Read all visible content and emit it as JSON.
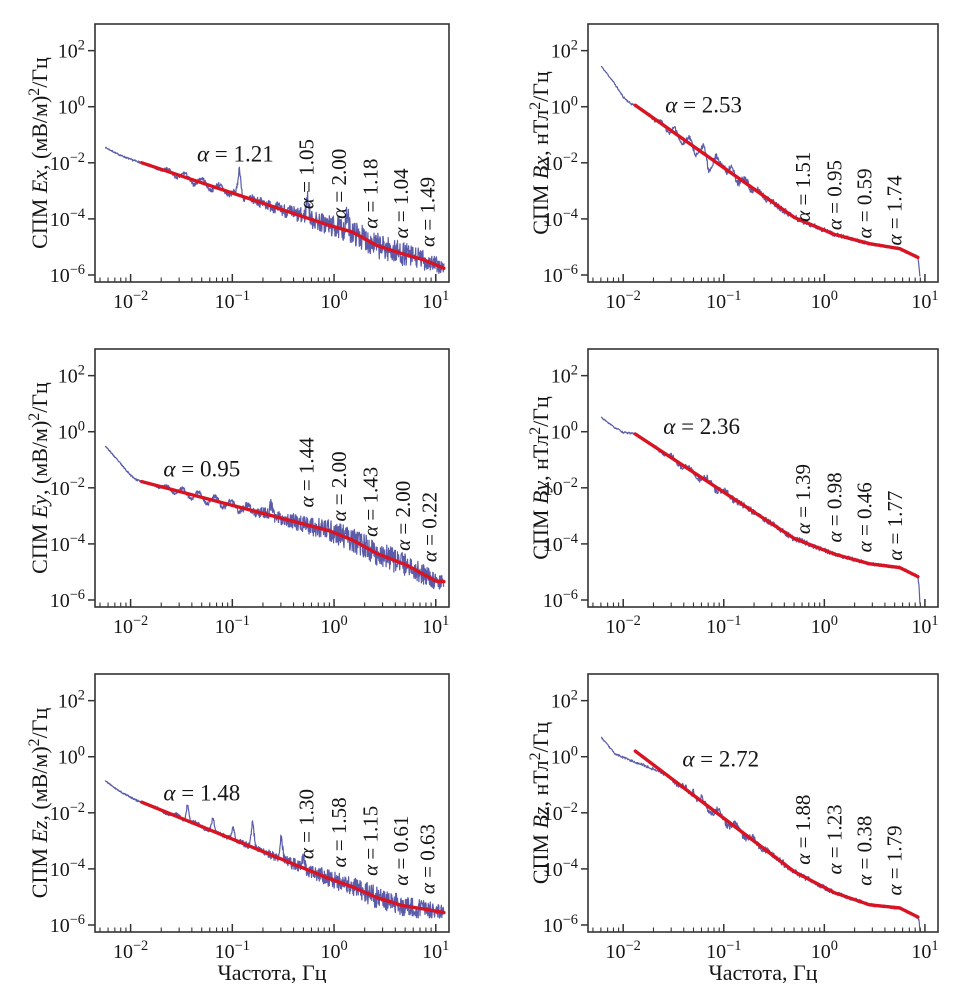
{
  "figure": {
    "description": "Six-panel log-log power spectral density figure: electric field components Ex, Ey, Ez (left column) and magnetic field components Bx, By, Bz (right column), each with noisy spectrum and piecewise power-law fits annotated with spectral indices alpha",
    "rows": 3,
    "cols": 2
  },
  "axes": {
    "x_log_range": [
      -2.35,
      1.13
    ],
    "y_log_range": [
      -6.25,
      2.95
    ],
    "x_tick_exponents": [
      "−2",
      "−1",
      "0",
      "1"
    ],
    "y_tick_exponents": [
      "2",
      "0",
      "−2",
      "−4",
      "−6"
    ],
    "xlabel": "Частота, Гц",
    "grid": false,
    "legend": false,
    "colors": {
      "spectrum": "#5a5caa",
      "fit": "#d91422",
      "frame": "#333333",
      "text": "#151515",
      "background": "#ffffff"
    }
  },
  "chart_data": [
    {
      "type": "line",
      "panel": "Ex",
      "row": 0,
      "col": 0,
      "ylabel": "СПМ Ex, (мВ/м)²/Гц",
      "ylabel_parts": [
        {
          "t": "СПМ ",
          "s": "n"
        },
        {
          "t": "Ex",
          "s": "i"
        },
        {
          "t": ", (мВ/м)",
          "s": "n"
        },
        {
          "t": "2",
          "s": "sup"
        },
        {
          "t": "/Гц",
          "s": "n"
        }
      ],
      "show_xlabel": false,
      "alpha_values": [
        1.21,
        1.05,
        2.0,
        1.18,
        1.04,
        1.49
      ],
      "fit": {
        "start": [
          -1.89,
          -2.0
        ],
        "segments": [
          {
            "alpha": 1.21,
            "to": -0.05
          },
          {
            "alpha": 1.05,
            "to": 0.18
          },
          {
            "alpha": 2.0,
            "to": 0.42
          },
          {
            "alpha": 1.18,
            "to": 0.66
          },
          {
            "alpha": 1.04,
            "to": 0.88
          },
          {
            "alpha": 1.49,
            "to": 1.08
          }
        ]
      },
      "annotation_main": {
        "text": "α = 1.21",
        "x": -0.97,
        "y": -1.7
      },
      "annotations_rotated": [
        {
          "text": "α = 1.05",
          "x": -0.27,
          "y": -2.4
        },
        {
          "text": "α = 2.00",
          "x": 0.05,
          "y": -2.75
        },
        {
          "text": "α = 1.18",
          "x": 0.36,
          "y": -3.1
        },
        {
          "text": "α = 1.04",
          "x": 0.66,
          "y": -3.45
        },
        {
          "text": "α = 1.49",
          "x": 0.92,
          "y": -3.75
        }
      ],
      "head": [
        [
          -2.25,
          -1.45
        ],
        [
          -2.12,
          -1.7
        ],
        [
          -2.0,
          -1.88
        ]
      ],
      "tail": [],
      "noise": {
        "n": 950,
        "seed": 7,
        "amp": [
          [
            -2.25,
            0.02
          ],
          [
            -1.6,
            0.05
          ],
          [
            -1.0,
            0.1
          ],
          [
            -0.5,
            0.24
          ],
          [
            0,
            0.4
          ],
          [
            0.4,
            0.46
          ],
          [
            0.8,
            0.4
          ],
          [
            1.08,
            0.26
          ]
        ],
        "osc": {
          "from": -1.85,
          "to": -0.75,
          "amp": 0.16,
          "period": 0.17
        },
        "spikes": [
          {
            "x": -0.93,
            "h": 0.9
          },
          {
            "x": -0.26,
            "h": 0.75
          },
          {
            "x": 0.13,
            "h": 0.5
          }
        ]
      }
    },
    {
      "type": "line",
      "panel": "Bx",
      "row": 0,
      "col": 1,
      "ylabel": "СПМ Bx, нТл²/Гц",
      "ylabel_parts": [
        {
          "t": "СПМ ",
          "s": "n"
        },
        {
          "t": "Bx",
          "s": "i"
        },
        {
          "t": ", нТл",
          "s": "n"
        },
        {
          "t": "2",
          "s": "sup"
        },
        {
          "t": "/Гц",
          "s": "n"
        }
      ],
      "show_xlabel": false,
      "alpha_values": [
        2.53,
        1.51,
        0.95,
        0.59,
        1.74
      ],
      "fit": {
        "start": [
          -1.88,
          0.05
        ],
        "segments": [
          {
            "alpha": 2.53,
            "to": -0.3
          },
          {
            "alpha": 1.51,
            "to": 0.1
          },
          {
            "alpha": 0.95,
            "to": 0.45
          },
          {
            "alpha": 0.59,
            "to": 0.75
          },
          {
            "alpha": 1.74,
            "to": 0.93
          }
        ]
      },
      "annotation_main": {
        "text": "α = 2.53",
        "x": -1.2,
        "y": 0.05
      },
      "annotations_rotated": [
        {
          "text": "α = 1.51",
          "x": -0.21,
          "y": -2.85
        },
        {
          "text": "α = 0.95",
          "x": 0.1,
          "y": -3.15
        },
        {
          "text": "α = 0.59",
          "x": 0.4,
          "y": -3.45
        },
        {
          "text": "α = 1.74",
          "x": 0.7,
          "y": -3.7
        }
      ],
      "head": [
        [
          -2.22,
          1.45
        ],
        [
          -2.1,
          0.9
        ],
        [
          -2.0,
          0.35
        ],
        [
          -1.93,
          0.12
        ]
      ],
      "tail": [
        [
          0.94,
          -5.6
        ],
        [
          0.95,
          -6.1
        ]
      ],
      "noise": {
        "n": 650,
        "seed": 11,
        "amp": [
          [
            -2.22,
            0.02
          ],
          [
            -1.6,
            0.06
          ],
          [
            -1.0,
            0.12
          ],
          [
            -0.4,
            0.12
          ],
          [
            0.1,
            0.08
          ],
          [
            0.6,
            0.05
          ],
          [
            0.96,
            0.06
          ]
        ],
        "osc": {
          "from": -1.8,
          "to": -0.5,
          "amp": 0.25,
          "period": 0.14
        },
        "spikes": [
          {
            "x": -1.15,
            "h": -0.35
          },
          {
            "x": -1.0,
            "h": 0.3
          }
        ]
      }
    },
    {
      "type": "line",
      "panel": "Ey",
      "row": 1,
      "col": 0,
      "ylabel": "СПМ Ey, (мВ/м)²/Гц",
      "ylabel_parts": [
        {
          "t": "СПМ ",
          "s": "n"
        },
        {
          "t": "Ey",
          "s": "i"
        },
        {
          "t": ", (мВ/м)",
          "s": "n"
        },
        {
          "t": "2",
          "s": "sup"
        },
        {
          "t": "/Гц",
          "s": "n"
        }
      ],
      "show_xlabel": false,
      "alpha_values": [
        0.95,
        1.44,
        2.0,
        1.43,
        2.0,
        0.22
      ],
      "fit": {
        "start": [
          -1.89,
          -1.78
        ],
        "segments": [
          {
            "alpha": 0.95,
            "to": -0.05
          },
          {
            "alpha": 1.44,
            "to": 0.18
          },
          {
            "alpha": 2.0,
            "to": 0.42
          },
          {
            "alpha": 1.43,
            "to": 0.72
          },
          {
            "alpha": 2.0,
            "to": 1.0
          },
          {
            "alpha": 0.22,
            "to": 1.08
          }
        ]
      },
      "annotation_main": {
        "text": "α = 0.95",
        "x": -1.3,
        "y": -1.35
      },
      "annotations_rotated": [
        {
          "text": "α = 1.44",
          "x": -0.27,
          "y": -1.45
        },
        {
          "text": "α = 2.00",
          "x": 0.05,
          "y": -1.95
        },
        {
          "text": "α = 1.43",
          "x": 0.36,
          "y": -2.5
        },
        {
          "text": "α = 2.00",
          "x": 0.68,
          "y": -3.0
        },
        {
          "text": "α = 0.22",
          "x": 0.94,
          "y": -3.4
        }
      ],
      "head": [
        [
          -2.25,
          -0.5
        ],
        [
          -2.12,
          -1.05
        ],
        [
          -2.0,
          -1.55
        ],
        [
          -1.94,
          -1.72
        ]
      ],
      "tail": [],
      "noise": {
        "n": 950,
        "seed": 23,
        "amp": [
          [
            -2.25,
            0.02
          ],
          [
            -1.6,
            0.05
          ],
          [
            -1.0,
            0.1
          ],
          [
            -0.5,
            0.24
          ],
          [
            0,
            0.4
          ],
          [
            0.4,
            0.46
          ],
          [
            0.8,
            0.4
          ],
          [
            1.08,
            0.26
          ]
        ],
        "osc": {
          "from": -1.85,
          "to": -0.6,
          "amp": 0.18,
          "period": 0.16
        },
        "spikes": [
          {
            "x": -0.62,
            "h": 0.4
          }
        ]
      }
    },
    {
      "type": "line",
      "panel": "By",
      "row": 1,
      "col": 1,
      "ylabel": "СПМ By, нТл²/Гц",
      "ylabel_parts": [
        {
          "t": "СПМ ",
          "s": "n"
        },
        {
          "t": "By",
          "s": "i"
        },
        {
          "t": ", нТл",
          "s": "n"
        },
        {
          "t": "2",
          "s": "sup"
        },
        {
          "t": "/Гц",
          "s": "n"
        }
      ],
      "show_xlabel": false,
      "alpha_values": [
        2.36,
        1.39,
        0.98,
        0.46,
        1.77
      ],
      "fit": {
        "start": [
          -1.88,
          -0.08
        ],
        "segments": [
          {
            "alpha": 2.36,
            "to": -0.3
          },
          {
            "alpha": 1.39,
            "to": 0.1
          },
          {
            "alpha": 0.98,
            "to": 0.45
          },
          {
            "alpha": 0.46,
            "to": 0.75
          },
          {
            "alpha": 1.77,
            "to": 0.93
          }
        ]
      },
      "annotation_main": {
        "text": "α = 2.36",
        "x": -1.22,
        "y": 0.17
      },
      "annotations_rotated": [
        {
          "text": "α = 1.39",
          "x": -0.21,
          "y": -2.4
        },
        {
          "text": "α = 0.98",
          "x": 0.1,
          "y": -2.7
        },
        {
          "text": "α = 0.46",
          "x": 0.4,
          "y": -3.05
        },
        {
          "text": "α = 1.77",
          "x": 0.7,
          "y": -3.35
        }
      ],
      "head": [
        [
          -2.22,
          0.52
        ],
        [
          -2.1,
          0.18
        ],
        [
          -2.0,
          -0.02
        ],
        [
          -1.94,
          -0.06
        ]
      ],
      "tail": [
        [
          0.94,
          -5.45
        ],
        [
          0.95,
          -6.1
        ]
      ],
      "noise": {
        "n": 650,
        "seed": 31,
        "amp": [
          [
            -2.22,
            0.02
          ],
          [
            -1.6,
            0.06
          ],
          [
            -1.0,
            0.12
          ],
          [
            -0.4,
            0.12
          ],
          [
            0.1,
            0.08
          ],
          [
            0.6,
            0.05
          ],
          [
            0.96,
            0.06
          ]
        ],
        "osc": {
          "from": -1.75,
          "to": -0.8,
          "amp": 0.13,
          "period": 0.18
        },
        "spikes": []
      }
    },
    {
      "type": "line",
      "panel": "Ez",
      "row": 2,
      "col": 0,
      "ylabel": "СПМ Ez, (мВ/м)²/Гц",
      "ylabel_parts": [
        {
          "t": "СПМ ",
          "s": "n"
        },
        {
          "t": "Ez",
          "s": "i"
        },
        {
          "t": ", (мВ/м)",
          "s": "n"
        },
        {
          "t": "2",
          "s": "sup"
        },
        {
          "t": "/Гц",
          "s": "n"
        }
      ],
      "show_xlabel": true,
      "alpha_values": [
        1.48,
        1.3,
        1.58,
        1.15,
        0.61,
        0.63
      ],
      "fit": {
        "start": [
          -1.89,
          -1.62
        ],
        "segments": [
          {
            "alpha": 1.48,
            "to": -0.05
          },
          {
            "alpha": 1.3,
            "to": 0.18
          },
          {
            "alpha": 1.58,
            "to": 0.42
          },
          {
            "alpha": 1.15,
            "to": 0.66
          },
          {
            "alpha": 0.61,
            "to": 0.88
          },
          {
            "alpha": 0.63,
            "to": 1.08
          }
        ]
      },
      "annotation_main": {
        "text": "α = 1.48",
        "x": -1.3,
        "y": -1.32
      },
      "annotations_rotated": [
        {
          "text": "α = 1.30",
          "x": -0.27,
          "y": -2.4
        },
        {
          "text": "α = 1.58",
          "x": 0.05,
          "y": -2.7
        },
        {
          "text": "α = 1.15",
          "x": 0.36,
          "y": -3.0
        },
        {
          "text": "α = 0.61",
          "x": 0.66,
          "y": -3.35
        },
        {
          "text": "α = 0.63",
          "x": 0.92,
          "y": -3.65
        }
      ],
      "head": [
        [
          -2.25,
          -0.86
        ],
        [
          -2.12,
          -1.2
        ],
        [
          -2.0,
          -1.45
        ],
        [
          -1.94,
          -1.56
        ]
      ],
      "tail": [],
      "noise": {
        "n": 950,
        "seed": 41,
        "amp": [
          [
            -2.25,
            0.02
          ],
          [
            -1.6,
            0.05
          ],
          [
            -1.0,
            0.09
          ],
          [
            -0.5,
            0.18
          ],
          [
            0,
            0.32
          ],
          [
            0.4,
            0.4
          ],
          [
            0.8,
            0.36
          ],
          [
            1.08,
            0.24
          ]
        ],
        "osc": {
          "from": -1.8,
          "to": -1.2,
          "amp": 0.08,
          "period": 0.2
        },
        "spikes": [
          {
            "x": -1.44,
            "h": 0.65
          },
          {
            "x": -1.19,
            "h": 0.45
          },
          {
            "x": -0.99,
            "h": 0.4
          },
          {
            "x": -0.8,
            "h": 0.9
          },
          {
            "x": -0.52,
            "h": 0.75
          },
          {
            "x": -0.3,
            "h": 0.35
          }
        ]
      }
    },
    {
      "type": "line",
      "panel": "Bz",
      "row": 2,
      "col": 1,
      "ylabel": "СПМ Bz, нТл²/Гц",
      "ylabel_parts": [
        {
          "t": "СПМ ",
          "s": "n"
        },
        {
          "t": "Bz",
          "s": "i"
        },
        {
          "t": ", нТл",
          "s": "n"
        },
        {
          "t": "2",
          "s": "sup"
        },
        {
          "t": "/Гц",
          "s": "n"
        }
      ],
      "show_xlabel": true,
      "alpha_values": [
        2.72,
        1.88,
        1.23,
        0.38,
        1.79
      ],
      "fit": {
        "start": [
          -1.88,
          0.2
        ],
        "segments": [
          {
            "alpha": 2.72,
            "to": -0.3
          },
          {
            "alpha": 1.88,
            "to": 0.1
          },
          {
            "alpha": 1.23,
            "to": 0.45
          },
          {
            "alpha": 0.38,
            "to": 0.75
          },
          {
            "alpha": 1.79,
            "to": 0.93
          }
        ]
      },
      "annotation_main": {
        "text": "α = 2.72",
        "x": -1.03,
        "y": -0.1
      },
      "annotations_rotated": [
        {
          "text": "α = 1.88",
          "x": -0.21,
          "y": -2.6
        },
        {
          "text": "α = 1.23",
          "x": 0.1,
          "y": -2.95
        },
        {
          "text": "α = 0.38",
          "x": 0.4,
          "y": -3.35
        },
        {
          "text": "α = 1.79",
          "x": 0.7,
          "y": -3.7
        }
      ],
      "head": [
        [
          -2.22,
          0.7
        ],
        [
          -2.08,
          0.1
        ],
        [
          -1.95,
          -0.1
        ],
        [
          -1.8,
          -0.3
        ],
        [
          -1.62,
          -0.55
        ],
        [
          -1.5,
          -0.85
        ]
      ],
      "tail": [
        [
          0.94,
          -5.85
        ],
        [
          0.95,
          -6.2
        ]
      ],
      "noise": {
        "n": 650,
        "seed": 53,
        "amp": [
          [
            -2.22,
            0.02
          ],
          [
            -1.6,
            0.06
          ],
          [
            -1.0,
            0.12
          ],
          [
            -0.4,
            0.12
          ],
          [
            0.1,
            0.08
          ],
          [
            0.6,
            0.05
          ],
          [
            0.96,
            0.06
          ]
        ],
        "osc": {
          "from": -1.6,
          "to": -0.5,
          "amp": 0.18,
          "period": 0.17
        },
        "spikes": [
          {
            "x": -1.3,
            "h": 0.3
          }
        ]
      }
    }
  ]
}
